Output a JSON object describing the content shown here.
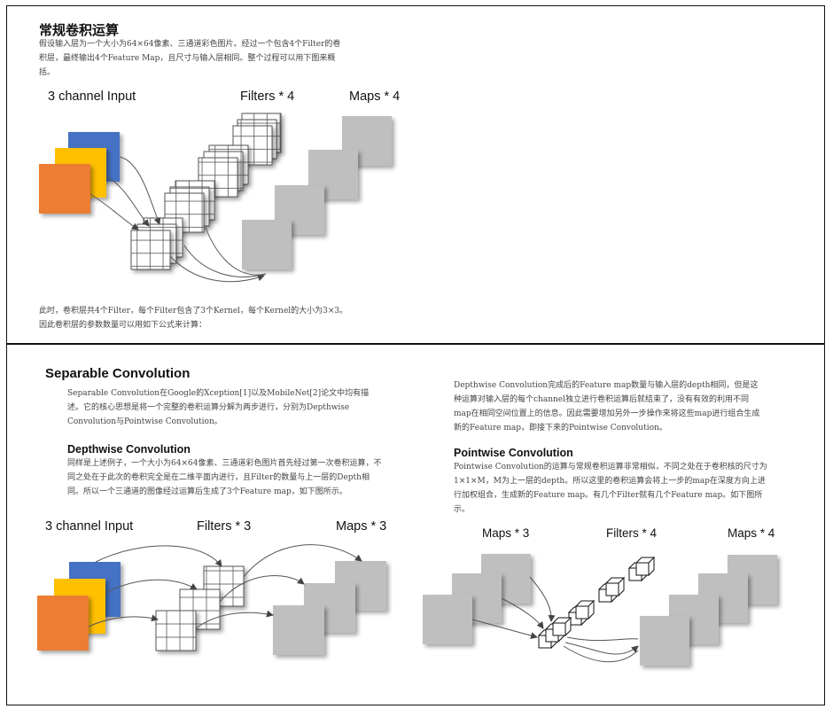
{
  "top": {
    "title": "常规卷积运算",
    "intro": "假设输入层为一个大小为64×64像素、三通道彩色图片。经过一个包含4个Filter的卷积层，最终输出4个Feature Map，且尺寸与输入层相同。整个过程可以用下图来概括。",
    "labels": {
      "input": "3 channel Input",
      "filters": "Filters * 4",
      "maps": "Maps * 4"
    },
    "footer": "此时，卷积层共4个Filter，每个Filter包含了3个Kernel，每个Kernel的大小为3×3。因此卷积层的参数数量可以用如下公式来计算："
  },
  "bottom": {
    "title": "Separable Convolution",
    "intro": "Separable Convolution在Google的Xception[1]以及MobileNet[2]论文中均有描述。它的核心思想是将一个完整的卷积运算分解为两步进行，分别为Depthwise Convolution与Pointwise Convolution。",
    "depthwise": {
      "title": "Depthwise Convolution",
      "text": "同样是上述例子，一个大小为64×64像素、三通道彩色图片首先经过第一次卷积运算，不同之处在于此次的卷积完全是在二维平面内进行，且Filter的数量与上一层的Depth相同。所以一个三通道的图像经过运算后生成了3个Feature map，如下图所示。",
      "labels": {
        "input": "3 channel Input",
        "filters": "Filters * 3",
        "maps": "Maps * 3"
      }
    },
    "right_text": "Depthwise Convolution完成后的Feature map数量与输入层的depth相同，但是这种运算对输入层的每个channel独立进行卷积运算后就结束了，没有有效的利用不同map在相同空间位置上的信息。因此需要增加另外一步操作来将这些map进行组合生成新的Feature map，即接下来的Pointwise Convolution。",
    "pointwise": {
      "title": "Pointwise Convolution",
      "text": "Pointwise Convolution的运算与常规卷积运算非常相似，不同之处在于卷积核的尺寸为1×1×M，M为上一层的depth。所以这里的卷积运算会将上一步的map在深度方向上进行加权组合，生成新的Feature map。有几个Filter就有几个Feature map。如下图所示。",
      "labels": {
        "maps": "Maps * 3",
        "filters": "Filters * 4",
        "maps_out": "Maps * 4"
      }
    }
  },
  "colors": {
    "blue": "#4472c4",
    "yellow": "#ffc000",
    "orange": "#ed7d31",
    "map_gray": "#bfbfbf",
    "border": "#111111"
  }
}
